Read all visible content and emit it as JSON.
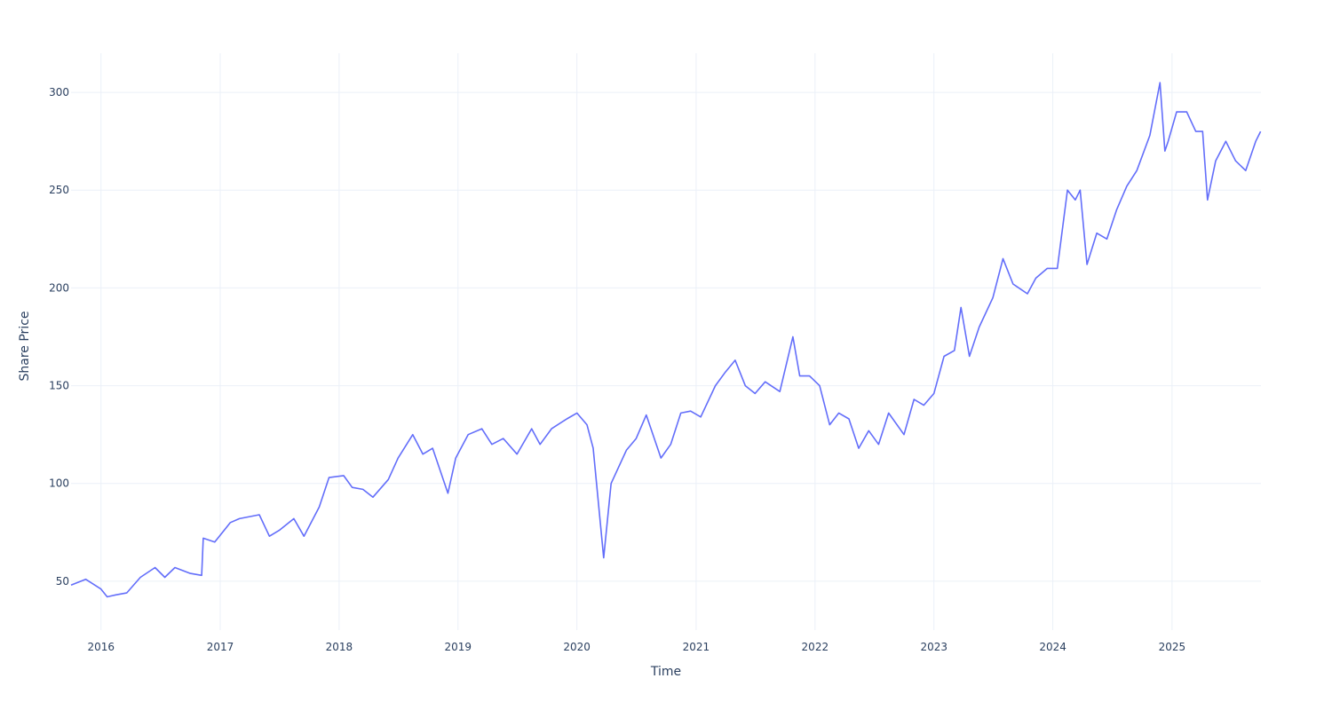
{
  "chart_data": {
    "type": "line",
    "title": "",
    "xlabel": "Time",
    "ylabel": "Share Price",
    "x_ticks": [
      "2016",
      "2017",
      "2018",
      "2019",
      "2020",
      "2021",
      "2022",
      "2023",
      "2024",
      "2025"
    ],
    "y_ticks": [
      50,
      100,
      150,
      200,
      250,
      300
    ],
    "xlim": [
      "2015-10-01",
      "2025-10-01"
    ],
    "ylim": [
      25,
      320
    ],
    "grid": true,
    "legend": "none",
    "colors": {
      "line": "#636efa",
      "grid": "#ebf0f8",
      "text": "#2a3f5f"
    },
    "series": [
      {
        "x": [
          "2015-10-01",
          "2015-11-15",
          "2016-01-01",
          "2016-01-20",
          "2016-02-15",
          "2016-03-20",
          "2016-05-01",
          "2016-06-15",
          "2016-07-15",
          "2016-08-15",
          "2016-10-01",
          "2016-11-05",
          "2016-11-10",
          "2016-12-15",
          "2017-02-01",
          "2017-03-01",
          "2017-05-01",
          "2017-06-01",
          "2017-07-01",
          "2017-08-15",
          "2017-09-15",
          "2017-11-01",
          "2017-12-01",
          "2018-01-15",
          "2018-02-10",
          "2018-03-15",
          "2018-04-15",
          "2018-06-01",
          "2018-07-01",
          "2018-08-15",
          "2018-09-15",
          "2018-10-15",
          "2018-12-01",
          "2018-12-25",
          "2019-02-01",
          "2019-03-15",
          "2019-04-15",
          "2019-05-20",
          "2019-07-01",
          "2019-08-15",
          "2019-09-10",
          "2019-10-15",
          "2019-12-01",
          "2020-01-01",
          "2020-02-01",
          "2020-02-20",
          "2020-03-23",
          "2020-04-15",
          "2020-06-01",
          "2020-07-01",
          "2020-08-01",
          "2020-09-15",
          "2020-10-15",
          "2020-11-15",
          "2020-12-15",
          "2021-01-15",
          "2021-03-01",
          "2021-04-01",
          "2021-05-01",
          "2021-06-01",
          "2021-07-01",
          "2021-08-01",
          "2021-09-15",
          "2021-10-25",
          "2021-11-15",
          "2021-12-15",
          "2022-01-15",
          "2022-02-15",
          "2022-03-15",
          "2022-04-15",
          "2022-05-15",
          "2022-06-15",
          "2022-07-15",
          "2022-08-15",
          "2022-10-01",
          "2022-11-01",
          "2022-12-01",
          "2023-01-01",
          "2023-02-01",
          "2023-03-05",
          "2023-03-25",
          "2023-04-20",
          "2023-05-20",
          "2023-07-01",
          "2023-08-01",
          "2023-09-01",
          "2023-10-15",
          "2023-11-10",
          "2023-12-15",
          "2024-01-15",
          "2024-02-15",
          "2024-03-10",
          "2024-03-25",
          "2024-04-15",
          "2024-05-15",
          "2024-06-15",
          "2024-07-15",
          "2024-08-15",
          "2024-09-15",
          "2024-10-25",
          "2024-11-25",
          "2024-12-10",
          "2024-12-20",
          "2025-01-15",
          "2025-02-15",
          "2025-03-15",
          "2025-04-05",
          "2025-04-20",
          "2025-05-15",
          "2025-06-15",
          "2025-07-15",
          "2025-08-15",
          "2025-09-15",
          "2025-09-30"
        ],
        "y": [
          48,
          51,
          46,
          42,
          43,
          44,
          52,
          57,
          52,
          57,
          54,
          53,
          72,
          70,
          80,
          82,
          84,
          73,
          76,
          82,
          73,
          88,
          103,
          104,
          98,
          97,
          93,
          102,
          113,
          125,
          115,
          118,
          95,
          113,
          125,
          128,
          120,
          123,
          115,
          128,
          120,
          128,
          133,
          136,
          130,
          118,
          62,
          100,
          117,
          123,
          135,
          113,
          120,
          136,
          137,
          134,
          150,
          157,
          163,
          150,
          146,
          152,
          147,
          175,
          155,
          155,
          150,
          130,
          136,
          133,
          118,
          127,
          120,
          136,
          125,
          143,
          140,
          146,
          165,
          168,
          190,
          165,
          180,
          195,
          215,
          202,
          197,
          205,
          210,
          210,
          250,
          245,
          250,
          212,
          228,
          225,
          240,
          252,
          260,
          278,
          305,
          270,
          275,
          290,
          290,
          280,
          280,
          245,
          265,
          275,
          265,
          260,
          275,
          280
        ]
      }
    ]
  }
}
